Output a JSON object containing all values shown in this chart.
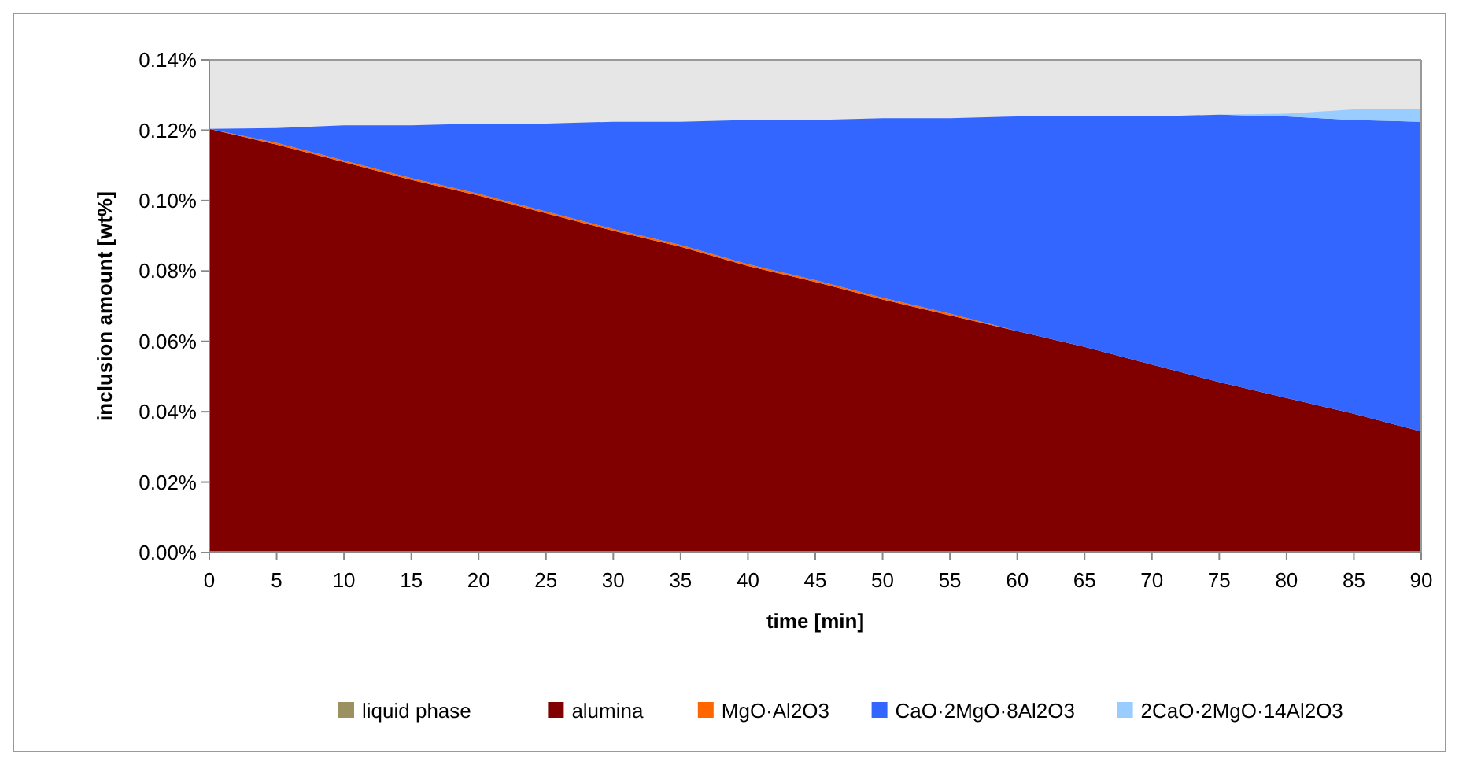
{
  "chart_data": {
    "type": "area",
    "stacked": true,
    "xlabel": "time [min]",
    "ylabel": "inclusion amount [wt%]",
    "x": [
      0,
      5,
      10,
      15,
      20,
      25,
      30,
      35,
      40,
      45,
      50,
      55,
      60,
      65,
      70,
      75,
      80,
      85,
      90
    ],
    "xlim": [
      0,
      90
    ],
    "xticks": [
      0,
      5,
      10,
      15,
      20,
      25,
      30,
      35,
      40,
      45,
      50,
      55,
      60,
      65,
      70,
      75,
      80,
      85,
      90
    ],
    "ylim": [
      0,
      0.14
    ],
    "yticks": [
      {
        "value": 0,
        "label": "0.00%"
      },
      {
        "value": 0.02,
        "label": "0.02%"
      },
      {
        "value": 0.04,
        "label": "0.04%"
      },
      {
        "value": 0.06,
        "label": "0.06%"
      },
      {
        "value": 0.08,
        "label": "0.08%"
      },
      {
        "value": 0.1,
        "label": "0.10%"
      },
      {
        "value": 0.12,
        "label": "0.12%"
      },
      {
        "value": 0.14,
        "label": "0.14%"
      }
    ],
    "legend": "bottom",
    "grid": false,
    "series": [
      {
        "name": "liquid phase",
        "color": "#9b9060",
        "values": [
          0.0004,
          0.0004,
          0.0004,
          0.0004,
          0.0004,
          0.0004,
          0.0004,
          0.0004,
          0.0004,
          0.0004,
          0.0004,
          0.0004,
          0.0004,
          0.0004,
          0.0004,
          0.0004,
          0.0004,
          0.0004,
          0.0004
        ]
      },
      {
        "name": "alumina",
        "color": "#800000",
        "values": [
          0.12,
          0.1155,
          0.1105,
          0.1055,
          0.101,
          0.096,
          0.091,
          0.0865,
          0.081,
          0.0765,
          0.0715,
          0.067,
          0.0625,
          0.058,
          0.053,
          0.048,
          0.0435,
          0.039,
          0.034
        ]
      },
      {
        "name": "MgO·Al2O3",
        "color": "#ff6600",
        "values": [
          0,
          0.0005,
          0.0005,
          0.0005,
          0.0005,
          0.0005,
          0.0005,
          0.0005,
          0.0005,
          0.0005,
          0.0005,
          0.0005,
          0,
          0,
          0,
          0,
          0,
          0,
          0
        ]
      },
      {
        "name": "CaO·2MgO·8Al2O3",
        "color": "#3366ff",
        "values": [
          0,
          0.0042,
          0.01,
          0.015,
          0.02,
          0.025,
          0.0305,
          0.035,
          0.041,
          0.0455,
          0.051,
          0.0555,
          0.061,
          0.0655,
          0.0705,
          0.076,
          0.08,
          0.0835,
          0.088
        ]
      },
      {
        "name": "2CaO·2MgO·14Al2O3",
        "color": "#99ccff",
        "values": [
          0,
          0,
          0,
          0,
          0,
          0,
          0,
          0,
          0,
          0,
          0,
          0,
          0,
          0,
          0,
          0,
          0.0008,
          0.003,
          0.0035
        ]
      }
    ]
  }
}
